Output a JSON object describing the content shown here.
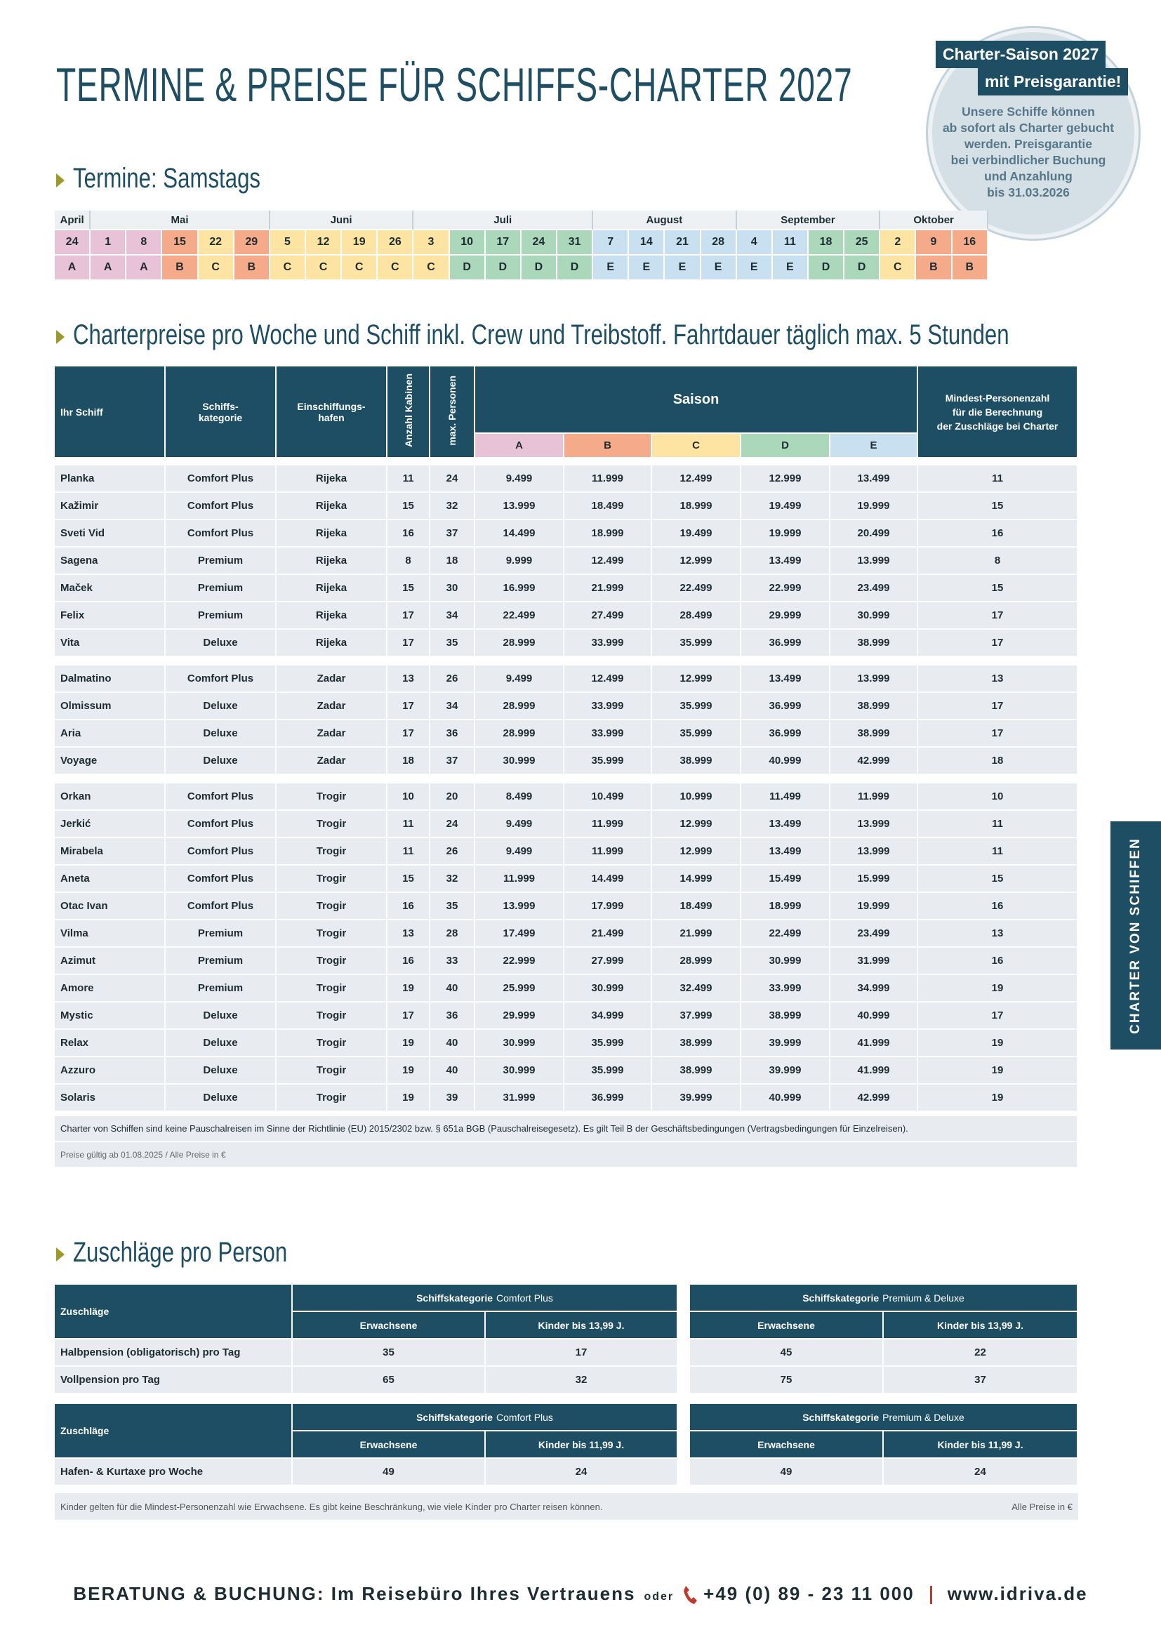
{
  "header": {
    "title": "TERMINE & PREISE FÜR SCHIFFS-CHARTER 2027"
  },
  "badge": {
    "line1": "Charter-Saison 2027",
    "line2": "mit Preisgarantie!",
    "text": [
      "Unsere Schiffe können",
      "ab sofort als Charter gebucht",
      "werden. Preisgarantie",
      "bei verbindlicher Buchung",
      "und Anzahlung",
      "bis 31.03.2026"
    ]
  },
  "dates": {
    "heading": "Termine: Samstags",
    "months": [
      {
        "name": "April",
        "days": [
          24
        ],
        "seasons": [
          "A"
        ]
      },
      {
        "name": "Mai",
        "days": [
          1,
          8,
          15,
          22,
          29
        ],
        "seasons": [
          "A",
          "A",
          "B",
          "C",
          "B"
        ]
      },
      {
        "name": "Juni",
        "days": [
          5,
          12,
          19,
          26
        ],
        "seasons": [
          "C",
          "C",
          "C",
          "C"
        ]
      },
      {
        "name": "Juli",
        "days": [
          3,
          10,
          17,
          24,
          31
        ],
        "seasons": [
          "C",
          "D",
          "D",
          "D",
          "D"
        ]
      },
      {
        "name": "August",
        "days": [
          7,
          14,
          21,
          28
        ],
        "seasons": [
          "E",
          "E",
          "E",
          "E"
        ]
      },
      {
        "name": "September",
        "days": [
          4,
          11,
          18,
          25
        ],
        "seasons": [
          "E",
          "E",
          "D",
          "D"
        ]
      },
      {
        "name": "Oktober",
        "days": [
          2,
          9,
          16
        ],
        "seasons": [
          "C",
          "B",
          "B"
        ]
      }
    ]
  },
  "prices": {
    "heading": "Charterpreise pro Woche und Schiff inkl. Crew und Treibstoff. Fahrtdauer täglich max. 5 Stunden",
    "columns": {
      "ship": "Ihr Schiff",
      "category": [
        "Schiffs-",
        "kategorie"
      ],
      "port": [
        "Einschiffungs-",
        "hafen"
      ],
      "cabins": "Anzahl Kabinen",
      "persons": "max. Personen",
      "season": "Saison",
      "seasons": [
        "A",
        "B",
        "C",
        "D",
        "E"
      ],
      "min": [
        "Mindest-Personenzahl",
        "für die Berechnung",
        "der Zuschläge bei Charter"
      ]
    },
    "groups": [
      [
        [
          "Planka",
          "Comfort Plus",
          "Rijeka",
          11,
          24,
          "9.499",
          "11.999",
          "12.499",
          "12.999",
          "13.499",
          11
        ],
        [
          "Kažimir",
          "Comfort Plus",
          "Rijeka",
          15,
          32,
          "13.999",
          "18.499",
          "18.999",
          "19.499",
          "19.999",
          15
        ],
        [
          "Sveti Vid",
          "Comfort Plus",
          "Rijeka",
          16,
          37,
          "14.499",
          "18.999",
          "19.499",
          "19.999",
          "20.499",
          16
        ],
        [
          "Sagena",
          "Premium",
          "Rijeka",
          8,
          18,
          "9.999",
          "12.499",
          "12.999",
          "13.499",
          "13.999",
          8
        ],
        [
          "Maček",
          "Premium",
          "Rijeka",
          15,
          30,
          "16.999",
          "21.999",
          "22.499",
          "22.999",
          "23.499",
          15
        ],
        [
          "Felix",
          "Premium",
          "Rijeka",
          17,
          34,
          "22.499",
          "27.499",
          "28.499",
          "29.999",
          "30.999",
          17
        ],
        [
          "Vita",
          "Deluxe",
          "Rijeka",
          17,
          35,
          "28.999",
          "33.999",
          "35.999",
          "36.999",
          "38.999",
          17
        ]
      ],
      [
        [
          "Dalmatino",
          "Comfort Plus",
          "Zadar",
          13,
          26,
          "9.499",
          "12.499",
          "12.999",
          "13.499",
          "13.999",
          13
        ],
        [
          "Olmissum",
          "Deluxe",
          "Zadar",
          17,
          34,
          "28.999",
          "33.999",
          "35.999",
          "36.999",
          "38.999",
          17
        ],
        [
          "Aria",
          "Deluxe",
          "Zadar",
          17,
          36,
          "28.999",
          "33.999",
          "35.999",
          "36.999",
          "38.999",
          17
        ],
        [
          "Voyage",
          "Deluxe",
          "Zadar",
          18,
          37,
          "30.999",
          "35.999",
          "38.999",
          "40.999",
          "42.999",
          18
        ]
      ],
      [
        [
          "Orkan",
          "Comfort Plus",
          "Trogir",
          10,
          20,
          "8.499",
          "10.499",
          "10.999",
          "11.499",
          "11.999",
          10
        ],
        [
          "Jerkić",
          "Comfort Plus",
          "Trogir",
          11,
          24,
          "9.499",
          "11.999",
          "12.999",
          "13.499",
          "13.999",
          11
        ],
        [
          "Mirabela",
          "Comfort Plus",
          "Trogir",
          11,
          26,
          "9.499",
          "11.999",
          "12.999",
          "13.499",
          "13.999",
          11
        ],
        [
          "Aneta",
          "Comfort Plus",
          "Trogir",
          15,
          32,
          "11.999",
          "14.499",
          "14.999",
          "15.499",
          "15.999",
          15
        ],
        [
          "Otac Ivan",
          "Comfort Plus",
          "Trogir",
          16,
          35,
          "13.999",
          "17.999",
          "18.499",
          "18.999",
          "19.999",
          16
        ],
        [
          "Vilma",
          "Premium",
          "Trogir",
          13,
          28,
          "17.499",
          "21.499",
          "21.999",
          "22.499",
          "23.499",
          13
        ],
        [
          "Azimut",
          "Premium",
          "Trogir",
          16,
          33,
          "22.999",
          "27.999",
          "28.999",
          "30.999",
          "31.999",
          16
        ],
        [
          "Amore",
          "Premium",
          "Trogir",
          19,
          40,
          "25.999",
          "30.999",
          "32.499",
          "33.999",
          "34.999",
          19
        ],
        [
          "Mystic",
          "Deluxe",
          "Trogir",
          17,
          36,
          "29.999",
          "34.999",
          "37.999",
          "38.999",
          "40.999",
          17
        ],
        [
          "Relax",
          "Deluxe",
          "Trogir",
          19,
          40,
          "30.999",
          "35.999",
          "38.999",
          "39.999",
          "41.999",
          19
        ],
        [
          "Azzuro",
          "Deluxe",
          "Trogir",
          19,
          40,
          "30.999",
          "35.999",
          "38.999",
          "39.999",
          "41.999",
          19
        ],
        [
          "Solaris",
          "Deluxe",
          "Trogir",
          19,
          39,
          "31.999",
          "36.999",
          "39.999",
          "40.999",
          "42.999",
          19
        ]
      ]
    ],
    "notes": [
      "Charter von Schiffen sind keine Pauschalreisen im Sinne der Richtlinie (EU) 2015/2302 bzw. § 651a BGB (Pauschalreisegesetz).  Es gilt Teil B der Geschäftsbedingungen (Vertragsbedingungen für Einzelreisen).",
      "Preise gültig ab 01.08.2025 / Alle  Preise in €"
    ]
  },
  "surcharges": {
    "heading": "Zuschläge pro Person",
    "tables": [
      {
        "label": "Zuschläge",
        "groups": [
          [
            "Schiffskategorie",
            "Comfort Plus"
          ],
          [
            "Schiffskategorie",
            "Premium & Deluxe"
          ]
        ],
        "subheads": [
          "Erwachsene",
          "Kinder bis 13,99 J."
        ],
        "rows": [
          [
            "Halbpension (obligatorisch) pro Tag",
            35,
            17,
            45,
            22
          ],
          [
            "Vollpension pro Tag",
            65,
            32,
            75,
            37
          ]
        ]
      },
      {
        "label": "Zuschläge",
        "groups": [
          [
            "Schiffskategorie",
            "Comfort Plus"
          ],
          [
            "Schiffskategorie",
            "Premium & Deluxe"
          ]
        ],
        "subheads": [
          "Erwachsene",
          "Kinder bis 11,99 J."
        ],
        "rows": [
          [
            "Hafen- & Kurtaxe pro Woche",
            49,
            24,
            49,
            24
          ]
        ]
      }
    ],
    "notes": [
      "Kinder gelten für die Mindest-Personenzahl wie Erwachsene. Es gibt keine Beschränkung, wie viele Kinder pro Charter reisen können.",
      "Alle  Preise in €"
    ]
  },
  "side_tab": "CHARTER VON SCHIFFEN",
  "footer": {
    "text": "BERATUNG & BUCHUNG: Im Reisebüro Ihres Vertrauens",
    "or": "oder",
    "phone": "+49 (0) 89 - 23 11 000",
    "web": "www.idriva.de"
  }
}
